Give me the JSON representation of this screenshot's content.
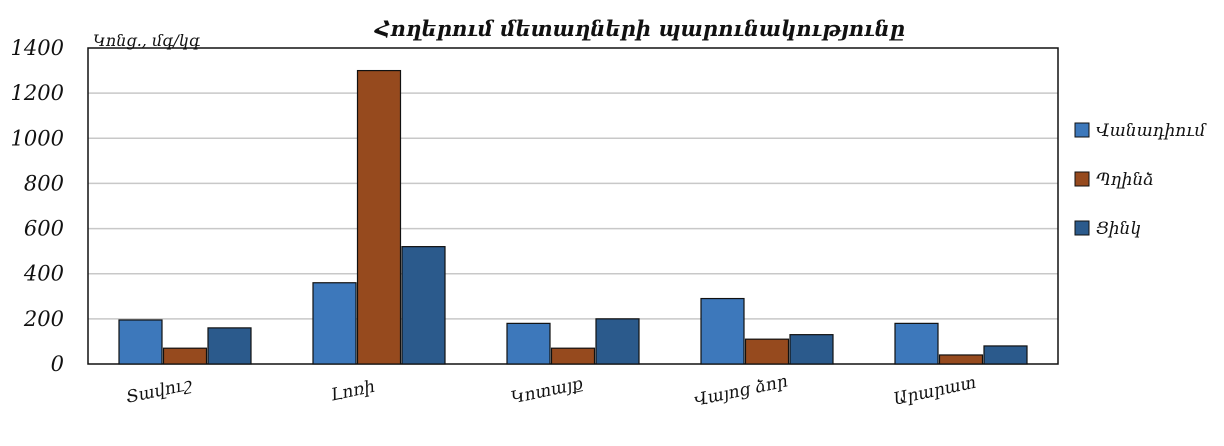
{
  "chart_data": {
    "type": "bar",
    "title": "Հողերում մետաղների պարունակությունը",
    "xlabel": "",
    "ylabel": "Կոնց., մգ/կգ",
    "categories": [
      "Տավուշ",
      "Լոռի",
      "Կոտայք",
      "Վայոց ձոր",
      "Արարատ"
    ],
    "series": [
      {
        "name": "Վանադիում",
        "color": "#3d78bb",
        "values": [
          195,
          360,
          180,
          290,
          180
        ]
      },
      {
        "name": "Պղինձ",
        "color": "#964a1e",
        "values": [
          70,
          1300,
          70,
          110,
          40
        ]
      },
      {
        "name": "Ցինկ",
        "color": "#2b5a8c",
        "values": [
          160,
          520,
          200,
          130,
          80
        ]
      }
    ],
    "ylim": [
      0,
      1400
    ],
    "yticks": [
      0,
      200,
      400,
      600,
      800,
      1000,
      1200,
      1400
    ],
    "grid": true,
    "legend_position": "right"
  }
}
